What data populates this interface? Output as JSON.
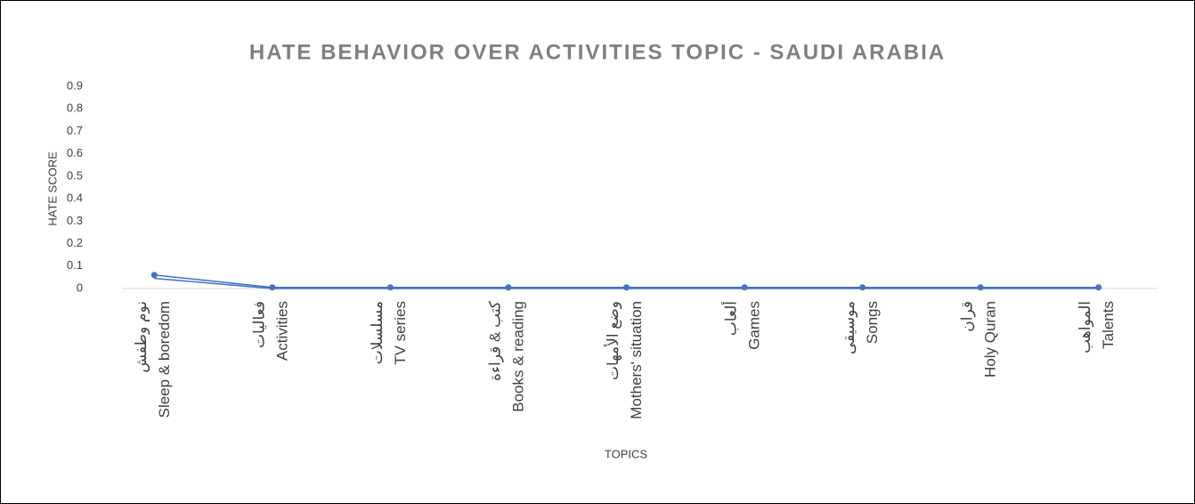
{
  "chart_data": {
    "type": "line",
    "title": "HATE BEHAVIOR OVER ACTIVITIES TOPIC - SAUDI ARABIA",
    "x_label": "TOPICS",
    "y_label": "HATE SCORE",
    "categories": [
      [
        "نوم وطفش",
        "Sleep & boredom"
      ],
      [
        "فعاليات",
        "Activities"
      ],
      [
        "مسلسلات",
        "TV series"
      ],
      [
        "كتب & قراءة",
        "Books & reading"
      ],
      [
        "وضع الأمهات",
        "Mothers' situation"
      ],
      [
        "ألعاب",
        "Games"
      ],
      [
        "موسيقى",
        "Songs"
      ],
      [
        "قران",
        "Holy Quran"
      ],
      [
        "المواهب",
        "Talents"
      ]
    ],
    "series": [
      {
        "color": "#4472c4",
        "markers": true,
        "values": [
          0.06,
          0.005,
          0.005,
          0.005,
          0.005,
          0.005,
          0.005,
          0.005,
          0.005
        ]
      },
      {
        "color": "#4472c4",
        "markers": false,
        "values": [
          0.045,
          0,
          0,
          0,
          0,
          0,
          0,
          0,
          0
        ]
      }
    ],
    "ylim": [
      0,
      0.9
    ],
    "yticks": [
      0,
      0.1,
      0.2,
      0.3,
      0.4,
      0.5,
      0.6,
      0.7,
      0.8,
      0.9
    ],
    "grid": false
  }
}
